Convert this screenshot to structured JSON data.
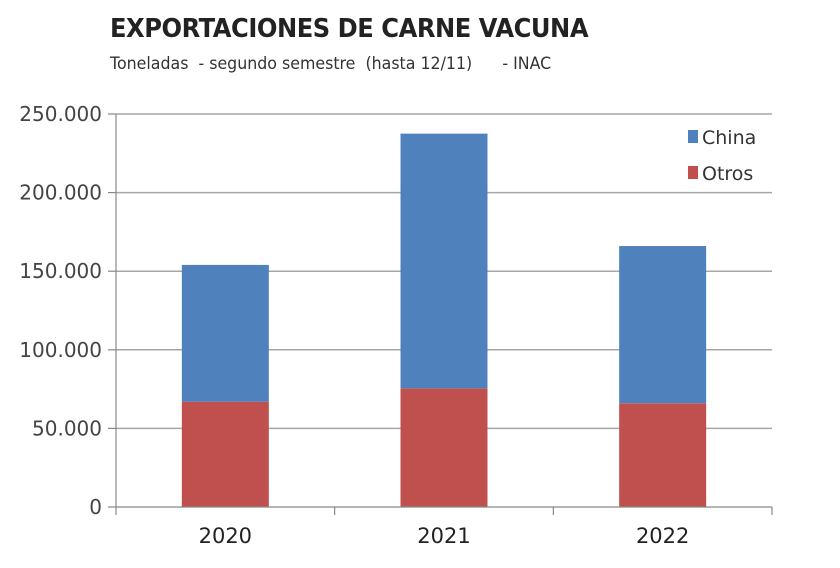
{
  "chart_data": {
    "type": "bar",
    "stacked": true,
    "title": "EXPORTACIONES DE CARNE VACUNA",
    "subtitle": "Toneladas  - segundo semestre  (hasta 12/11)      - INAC",
    "xlabel": "",
    "ylabel": "",
    "categories": [
      "2020",
      "2021",
      "2022"
    ],
    "series": [
      {
        "name": "Otros",
        "color": "#c0504d",
        "values": [
          67000,
          75500,
          66000
        ]
      },
      {
        "name": "China",
        "color": "#4f81bd",
        "values": [
          87000,
          162000,
          100000
        ]
      }
    ],
    "legend_order": [
      "China",
      "Otros"
    ],
    "ylim": [
      0,
      250000
    ],
    "yticks": [
      0,
      50000,
      100000,
      150000,
      200000,
      250000
    ],
    "ytick_labels": [
      "0",
      "50.000",
      "100.000",
      "150.000",
      "200.000",
      "250.000"
    ],
    "grid": true,
    "legend_position": "top-right"
  }
}
